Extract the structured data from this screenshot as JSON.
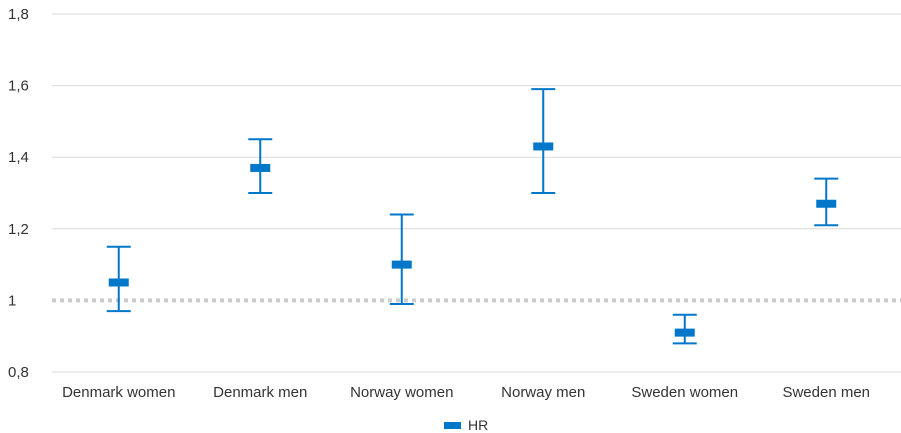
{
  "chart_data": {
    "type": "errorbar",
    "title": "",
    "xlabel": "",
    "ylabel": "",
    "categories": [
      "Denmark women",
      "Denmark men",
      "Norway women",
      "Norway men",
      "Sweden women",
      "Sweden men"
    ],
    "series": [
      {
        "name": "HR",
        "values": [
          1.05,
          1.37,
          1.1,
          1.43,
          0.91,
          1.27
        ],
        "lower": [
          0.97,
          1.3,
          0.99,
          1.3,
          0.88,
          1.21
        ],
        "upper": [
          1.15,
          1.45,
          1.24,
          1.59,
          0.96,
          1.34
        ]
      }
    ],
    "ylim": [
      0.8,
      1.8
    ],
    "yticks": [
      0.8,
      1,
      1.2,
      1.4,
      1.6,
      1.8
    ],
    "ytick_labels": [
      "0,8",
      "1",
      "1,2",
      "1,4",
      "1,6",
      "1,8"
    ],
    "reference_line": 1,
    "grid": true,
    "legend_position": "bottom-center",
    "colors": {
      "series": "#0077c8",
      "grid": "#d9d9d9",
      "reference": "#cccccc"
    }
  }
}
